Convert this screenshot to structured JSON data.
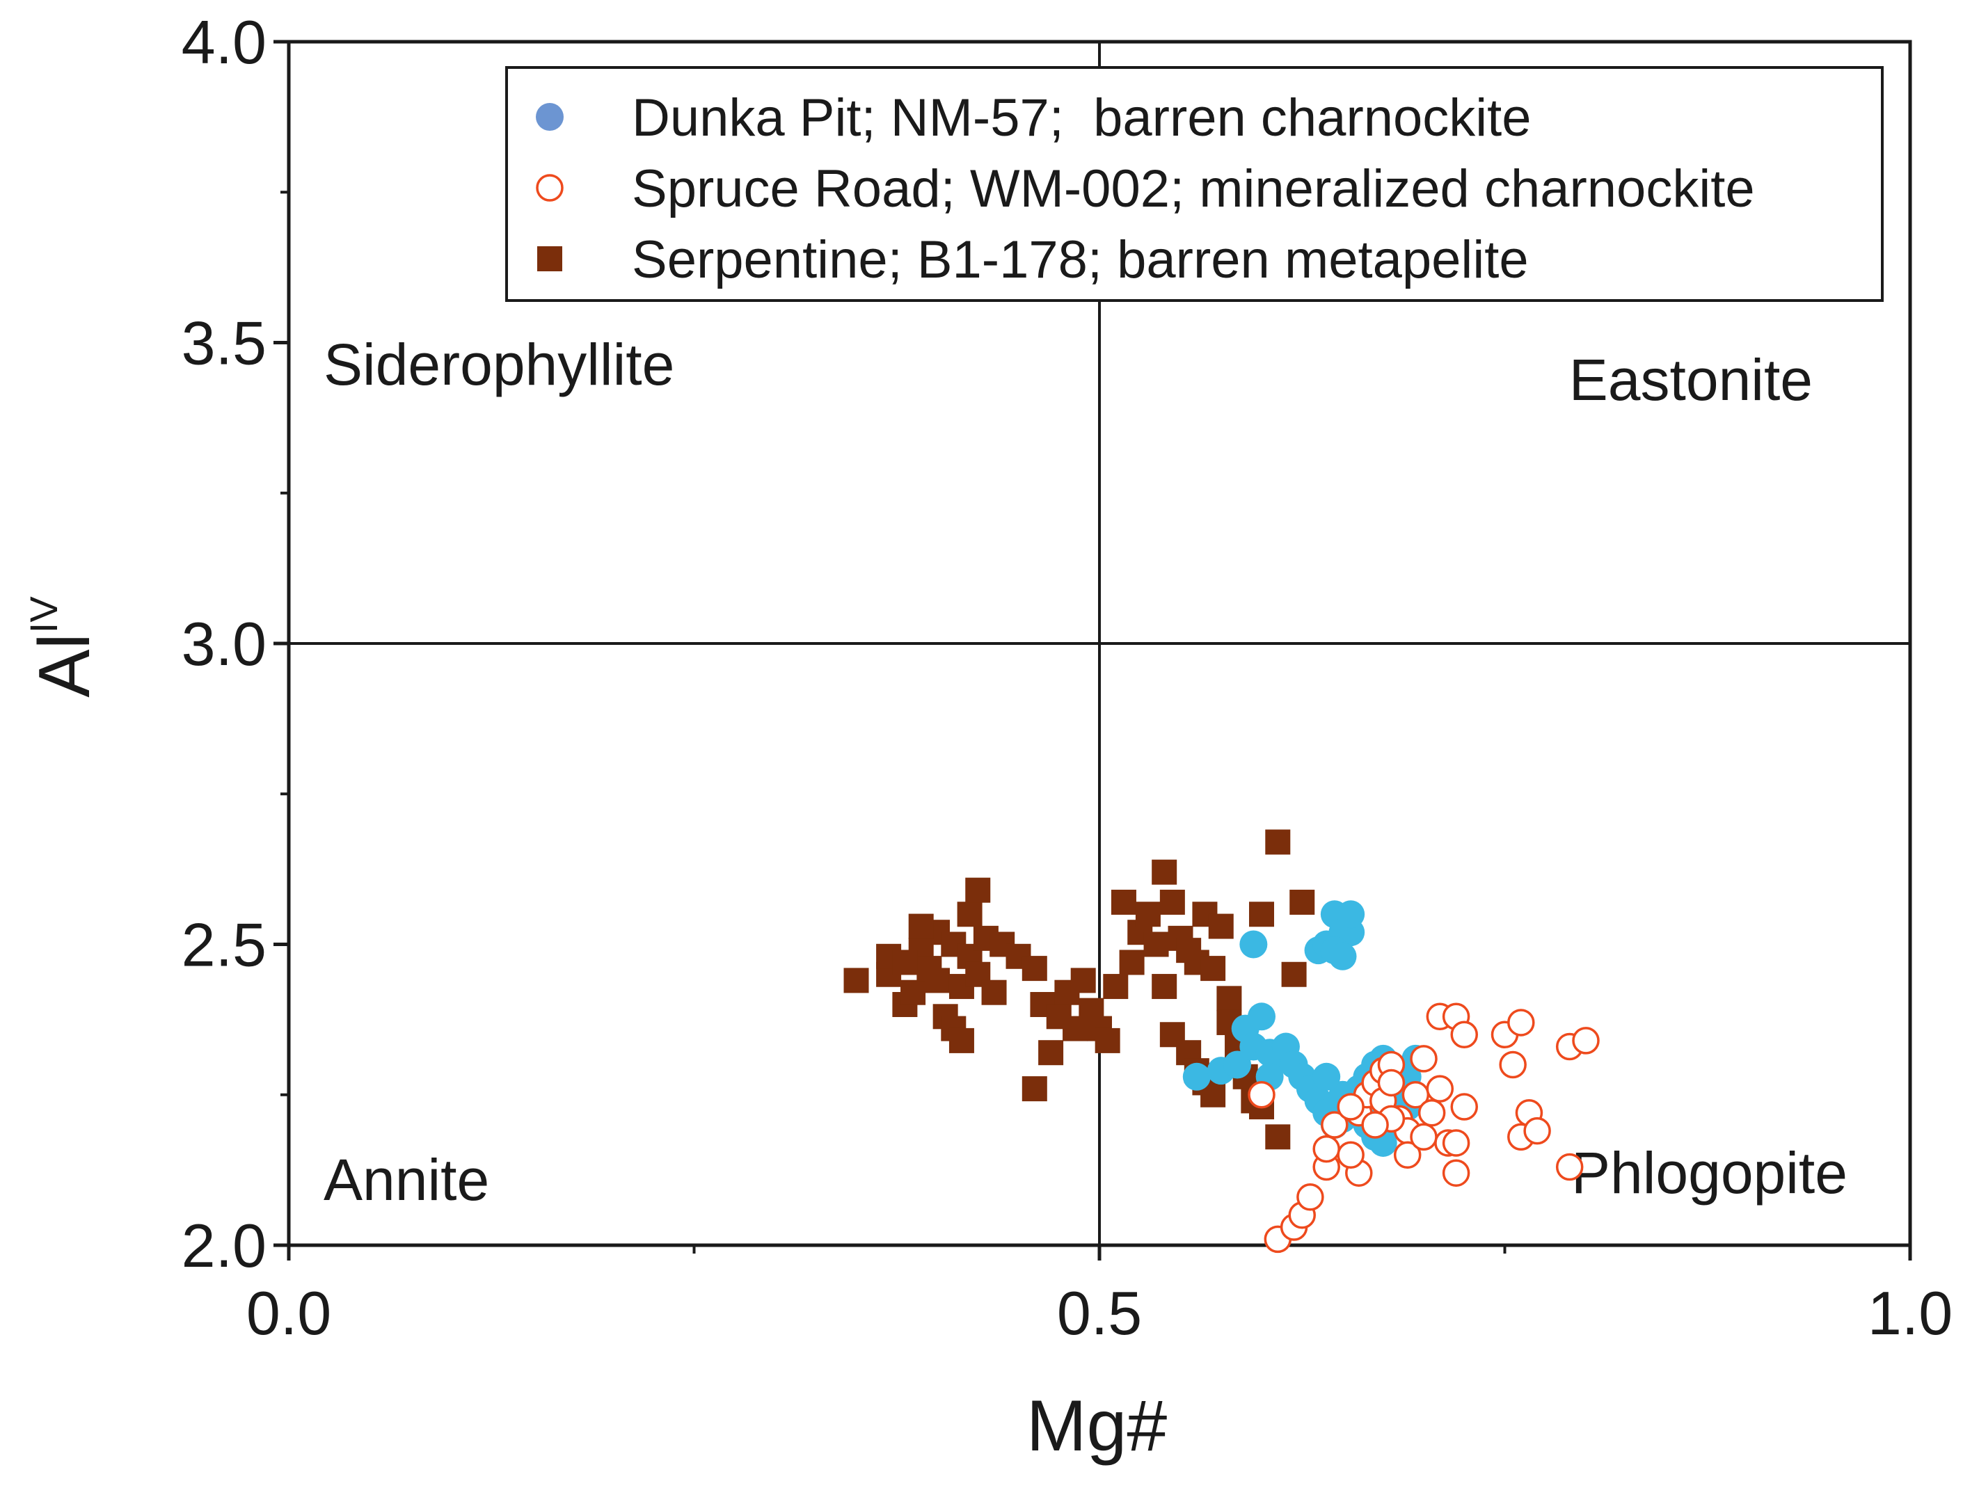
{
  "chart_data": {
    "type": "scatter",
    "title": "",
    "xlabel": "Mg#",
    "ylabel": "Al",
    "ylabel_superscript": "IV",
    "xlim": [
      0.0,
      1.0
    ],
    "ylim": [
      2.0,
      4.0
    ],
    "x_ticks": [
      "0.0",
      "0.5",
      "1.0"
    ],
    "y_ticks": [
      "2.0",
      "2.5",
      "3.0",
      "3.5",
      "4.0"
    ],
    "divider_lines": {
      "x": 0.5,
      "y": 3.0
    },
    "legend_position": "top-right",
    "region_labels": {
      "top_left": "Siderophyllite",
      "top_right": "Eastonite",
      "bottom_left": "Annite",
      "bottom_right": "Phlogopite"
    },
    "colors": {
      "dunka_legend": "#6c95d2",
      "dunka_points": "#3bb8e3",
      "spruce": "#ee4a1d",
      "serpentine": "#7b2e0b",
      "axis": "#1a1a1a",
      "background": "#ffffff"
    },
    "series": [
      {
        "name": "Dunka Pit; NM-57;  barren charnockite",
        "marker": "filled-circle",
        "points": [
          [
            0.56,
            2.28
          ],
          [
            0.575,
            2.29
          ],
          [
            0.585,
            2.3
          ],
          [
            0.59,
            2.36
          ],
          [
            0.6,
            2.38
          ],
          [
            0.595,
            2.33
          ],
          [
            0.605,
            2.32
          ],
          [
            0.61,
            2.31
          ],
          [
            0.615,
            2.33
          ],
          [
            0.605,
            2.28
          ],
          [
            0.62,
            2.3
          ],
          [
            0.625,
            2.28
          ],
          [
            0.63,
            2.26
          ],
          [
            0.635,
            2.24
          ],
          [
            0.64,
            2.22
          ],
          [
            0.645,
            2.2
          ],
          [
            0.65,
            2.21
          ],
          [
            0.655,
            2.24
          ],
          [
            0.66,
            2.22
          ],
          [
            0.665,
            2.2
          ],
          [
            0.67,
            2.18
          ],
          [
            0.675,
            2.21
          ],
          [
            0.68,
            2.22
          ],
          [
            0.685,
            2.2
          ],
          [
            0.69,
            2.23
          ],
          [
            0.66,
            2.26
          ],
          [
            0.665,
            2.28
          ],
          [
            0.67,
            2.3
          ],
          [
            0.675,
            2.31
          ],
          [
            0.68,
            2.29
          ],
          [
            0.695,
            2.31
          ],
          [
            0.69,
            2.28
          ],
          [
            0.685,
            2.25
          ],
          [
            0.675,
            2.17
          ],
          [
            0.65,
            2.25
          ],
          [
            0.64,
            2.28
          ],
          [
            0.595,
            2.5
          ],
          [
            0.635,
            2.49
          ],
          [
            0.64,
            2.5
          ],
          [
            0.645,
            2.55
          ],
          [
            0.65,
            2.54
          ],
          [
            0.65,
            2.52
          ],
          [
            0.655,
            2.52
          ],
          [
            0.645,
            2.49
          ],
          [
            0.65,
            2.48
          ],
          [
            0.655,
            2.55
          ]
        ]
      },
      {
        "name": "Spruce Road; WM-002; mineralized charnockite",
        "marker": "open-circle",
        "points": [
          [
            0.61,
            2.01
          ],
          [
            0.62,
            2.03
          ],
          [
            0.625,
            2.05
          ],
          [
            0.63,
            2.08
          ],
          [
            0.64,
            2.13
          ],
          [
            0.64,
            2.16
          ],
          [
            0.645,
            2.2
          ],
          [
            0.66,
            2.12
          ],
          [
            0.655,
            2.15
          ],
          [
            0.66,
            2.22
          ],
          [
            0.665,
            2.25
          ],
          [
            0.67,
            2.27
          ],
          [
            0.675,
            2.29
          ],
          [
            0.675,
            2.24
          ],
          [
            0.68,
            2.3
          ],
          [
            0.68,
            2.27
          ],
          [
            0.685,
            2.21
          ],
          [
            0.69,
            2.19
          ],
          [
            0.69,
            2.15
          ],
          [
            0.695,
            2.25
          ],
          [
            0.7,
            2.31
          ],
          [
            0.705,
            2.22
          ],
          [
            0.7,
            2.18
          ],
          [
            0.71,
            2.26
          ],
          [
            0.715,
            2.17
          ],
          [
            0.72,
            2.12
          ],
          [
            0.72,
            2.17
          ],
          [
            0.725,
            2.23
          ],
          [
            0.71,
            2.38
          ],
          [
            0.72,
            2.38
          ],
          [
            0.725,
            2.35
          ],
          [
            0.75,
            2.35
          ],
          [
            0.76,
            2.37
          ],
          [
            0.755,
            2.3
          ],
          [
            0.765,
            2.22
          ],
          [
            0.76,
            2.18
          ],
          [
            0.77,
            2.19
          ],
          [
            0.79,
            2.33
          ],
          [
            0.8,
            2.34
          ],
          [
            0.79,
            2.13
          ],
          [
            0.6,
            2.25
          ],
          [
            0.68,
            2.21
          ],
          [
            0.67,
            2.2
          ],
          [
            0.655,
            2.23
          ]
        ]
      },
      {
        "name": "Serpentine; B1-178; barren metapelite",
        "marker": "filled-square",
        "points": [
          [
            0.35,
            2.44
          ],
          [
            0.37,
            2.45
          ],
          [
            0.37,
            2.48
          ],
          [
            0.38,
            2.4
          ],
          [
            0.385,
            2.42
          ],
          [
            0.39,
            2.49
          ],
          [
            0.395,
            2.46
          ],
          [
            0.4,
            2.44
          ],
          [
            0.4,
            2.52
          ],
          [
            0.405,
            2.38
          ],
          [
            0.41,
            2.36
          ],
          [
            0.41,
            2.5
          ],
          [
            0.415,
            2.34
          ],
          [
            0.415,
            2.43
          ],
          [
            0.42,
            2.55
          ],
          [
            0.42,
            2.48
          ],
          [
            0.425,
            2.45
          ],
          [
            0.425,
            2.59
          ],
          [
            0.43,
            2.51
          ],
          [
            0.435,
            2.42
          ],
          [
            0.44,
            2.5
          ],
          [
            0.45,
            2.48
          ],
          [
            0.46,
            2.46
          ],
          [
            0.38,
            2.47
          ],
          [
            0.39,
            2.53
          ],
          [
            0.46,
            2.26
          ],
          [
            0.465,
            2.4
          ],
          [
            0.47,
            2.32
          ],
          [
            0.475,
            2.38
          ],
          [
            0.48,
            2.42
          ],
          [
            0.485,
            2.36
          ],
          [
            0.49,
            2.44
          ],
          [
            0.495,
            2.39
          ],
          [
            0.5,
            2.36
          ],
          [
            0.505,
            2.34
          ],
          [
            0.51,
            2.43
          ],
          [
            0.52,
            2.47
          ],
          [
            0.515,
            2.57
          ],
          [
            0.525,
            2.52
          ],
          [
            0.53,
            2.55
          ],
          [
            0.535,
            2.5
          ],
          [
            0.54,
            2.62
          ],
          [
            0.545,
            2.57
          ],
          [
            0.55,
            2.51
          ],
          [
            0.555,
            2.49
          ],
          [
            0.56,
            2.47
          ],
          [
            0.565,
            2.55
          ],
          [
            0.57,
            2.46
          ],
          [
            0.575,
            2.53
          ],
          [
            0.58,
            2.41
          ],
          [
            0.545,
            2.35
          ],
          [
            0.555,
            2.32
          ],
          [
            0.56,
            2.29
          ],
          [
            0.565,
            2.27
          ],
          [
            0.57,
            2.25
          ],
          [
            0.58,
            2.37
          ],
          [
            0.585,
            2.33
          ],
          [
            0.59,
            2.28
          ],
          [
            0.595,
            2.24
          ],
          [
            0.6,
            2.23
          ],
          [
            0.61,
            2.18
          ],
          [
            0.62,
            2.45
          ],
          [
            0.625,
            2.57
          ],
          [
            0.6,
            2.55
          ],
          [
            0.61,
            2.67
          ],
          [
            0.54,
            2.43
          ]
        ]
      }
    ]
  }
}
